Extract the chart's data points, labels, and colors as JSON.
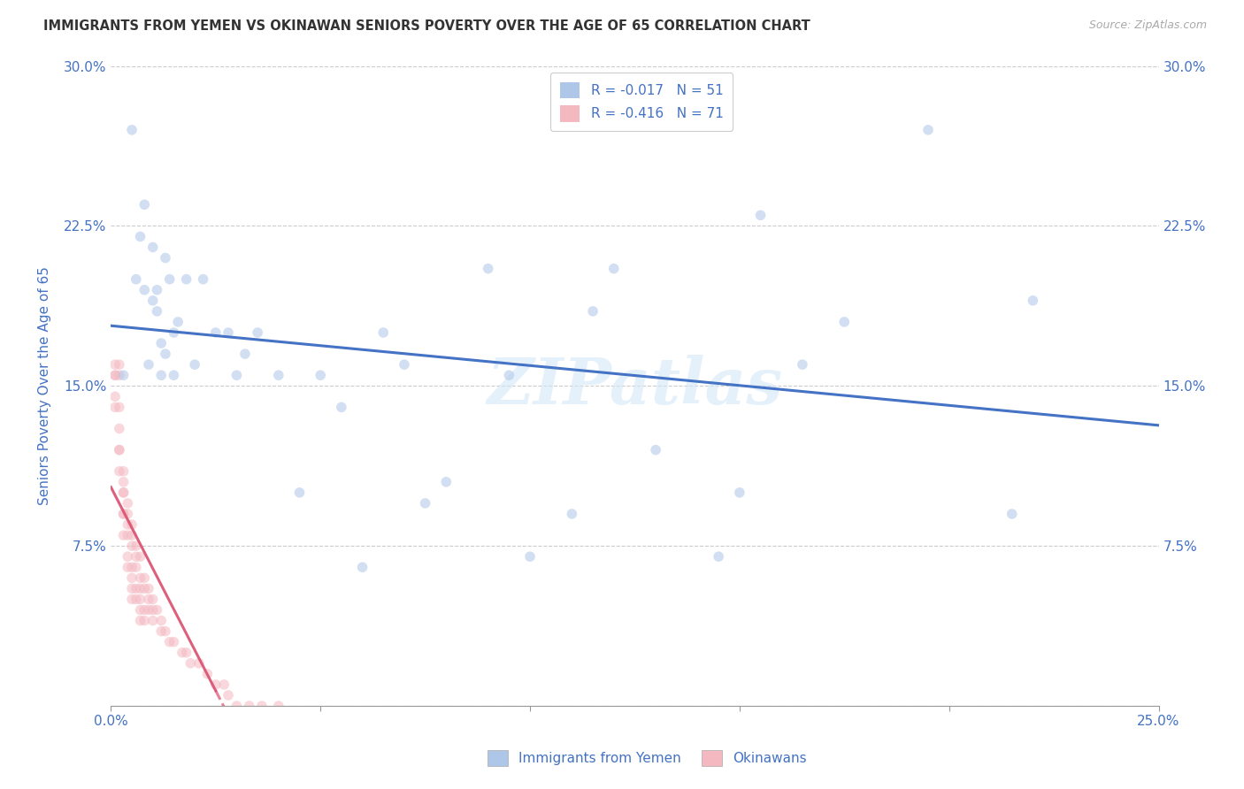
{
  "title": "IMMIGRANTS FROM YEMEN VS OKINAWAN SENIORS POVERTY OVER THE AGE OF 65 CORRELATION CHART",
  "source": "Source: ZipAtlas.com",
  "ylabel": "Seniors Poverty Over the Age of 65",
  "xlim": [
    0,
    0.25
  ],
  "ylim": [
    0,
    0.3
  ],
  "xtick_positions": [
    0.0,
    0.05,
    0.1,
    0.15,
    0.2,
    0.25
  ],
  "xticklabels": [
    "0.0%",
    "",
    "",
    "",
    "",
    "25.0%"
  ],
  "ytick_positions": [
    0.0,
    0.075,
    0.15,
    0.225,
    0.3
  ],
  "yticklabels_left": [
    "",
    "7.5%",
    "15.0%",
    "22.5%",
    "30.0%"
  ],
  "yticklabels_right": [
    "",
    "7.5%",
    "15.0%",
    "22.5%",
    "30.0%"
  ],
  "grid_color": "#cccccc",
  "background_color": "#ffffff",
  "text_color": "#4472c4",
  "watermark": "ZIPatlas",
  "legend_entries": [
    {
      "label": "R = -0.017   N = 51",
      "color": "#aec6e8"
    },
    {
      "label": "R = -0.416   N = 71",
      "color": "#f4b8c1"
    }
  ],
  "legend_labels": [
    "Immigrants from Yemen",
    "Okinawans"
  ],
  "yemen_color": "#aec6e8",
  "okinawa_color": "#f4b8c1",
  "yemen_line_color": "#4472c4",
  "okinawa_line_color": "#d94f6e",
  "yemen_x": [
    0.003,
    0.005,
    0.006,
    0.007,
    0.008,
    0.008,
    0.009,
    0.01,
    0.01,
    0.011,
    0.011,
    0.012,
    0.012,
    0.013,
    0.013,
    0.014,
    0.015,
    0.015,
    0.016,
    0.018,
    0.02,
    0.022,
    0.025,
    0.028,
    0.03,
    0.032,
    0.035,
    0.04,
    0.045,
    0.05,
    0.055,
    0.06,
    0.065,
    0.07,
    0.075,
    0.08,
    0.09,
    0.095,
    0.1,
    0.11,
    0.115,
    0.12,
    0.13,
    0.145,
    0.15,
    0.155,
    0.165,
    0.175,
    0.195,
    0.215,
    0.22
  ],
  "yemen_y": [
    0.155,
    0.27,
    0.2,
    0.22,
    0.235,
    0.195,
    0.16,
    0.215,
    0.19,
    0.185,
    0.195,
    0.155,
    0.17,
    0.165,
    0.21,
    0.2,
    0.175,
    0.155,
    0.18,
    0.2,
    0.16,
    0.2,
    0.175,
    0.175,
    0.155,
    0.165,
    0.175,
    0.155,
    0.1,
    0.155,
    0.14,
    0.065,
    0.175,
    0.16,
    0.095,
    0.105,
    0.205,
    0.155,
    0.07,
    0.09,
    0.185,
    0.205,
    0.12,
    0.07,
    0.1,
    0.23,
    0.16,
    0.18,
    0.27,
    0.09,
    0.19
  ],
  "okinawa_x": [
    0.001,
    0.001,
    0.001,
    0.001,
    0.001,
    0.002,
    0.002,
    0.002,
    0.002,
    0.002,
    0.002,
    0.002,
    0.003,
    0.003,
    0.003,
    0.003,
    0.003,
    0.003,
    0.003,
    0.004,
    0.004,
    0.004,
    0.004,
    0.004,
    0.004,
    0.005,
    0.005,
    0.005,
    0.005,
    0.005,
    0.005,
    0.005,
    0.006,
    0.006,
    0.006,
    0.006,
    0.006,
    0.007,
    0.007,
    0.007,
    0.007,
    0.007,
    0.007,
    0.008,
    0.008,
    0.008,
    0.008,
    0.009,
    0.009,
    0.009,
    0.01,
    0.01,
    0.01,
    0.011,
    0.012,
    0.012,
    0.013,
    0.014,
    0.015,
    0.017,
    0.018,
    0.019,
    0.021,
    0.023,
    0.025,
    0.027,
    0.028,
    0.03,
    0.033,
    0.036,
    0.04
  ],
  "okinawa_y": [
    0.155,
    0.16,
    0.155,
    0.145,
    0.14,
    0.155,
    0.16,
    0.14,
    0.13,
    0.12,
    0.12,
    0.11,
    0.1,
    0.105,
    0.11,
    0.1,
    0.09,
    0.09,
    0.08,
    0.095,
    0.09,
    0.085,
    0.08,
    0.07,
    0.065,
    0.085,
    0.08,
    0.075,
    0.065,
    0.06,
    0.055,
    0.05,
    0.075,
    0.07,
    0.065,
    0.055,
    0.05,
    0.07,
    0.06,
    0.055,
    0.05,
    0.045,
    0.04,
    0.06,
    0.055,
    0.045,
    0.04,
    0.055,
    0.05,
    0.045,
    0.05,
    0.045,
    0.04,
    0.045,
    0.04,
    0.035,
    0.035,
    0.03,
    0.03,
    0.025,
    0.025,
    0.02,
    0.02,
    0.015,
    0.01,
    0.01,
    0.005,
    0.0,
    0.0,
    0.0,
    0.0
  ],
  "marker_size": 70,
  "marker_alpha": 0.55,
  "line_width": 2.2
}
